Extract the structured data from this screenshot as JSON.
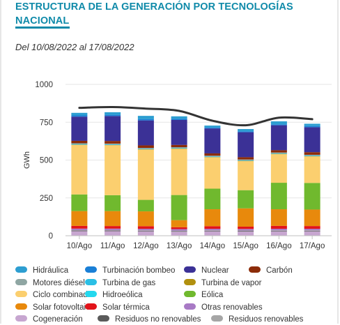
{
  "header": {
    "title_line1": "ESTRUCTURA DE LA GENERACIÓN POR TECNOLOGÍAS",
    "title_line2": "NACIONAL",
    "subtitle": "Del 10/08/2022 al 17/08/2022"
  },
  "colors": {
    "accent": "#0f8aa9",
    "total_line": "#333333",
    "gridline": "#e6e6e6"
  },
  "chart_data": {
    "type": "bar",
    "stacked": true,
    "ylabel": "GWh",
    "ylim": [
      0,
      1000
    ],
    "yticks": [
      0,
      250,
      500,
      750,
      1000
    ],
    "categories": [
      "10/Ago",
      "11/Ago",
      "12/Ago",
      "13/Ago",
      "14/Ago",
      "15/Ago",
      "16/Ago",
      "17/Ago"
    ],
    "series": [
      {
        "name": "Cogeneración",
        "color": "#c7a6d0",
        "values": [
          30,
          30,
          29,
          27,
          29,
          28,
          29,
          29
        ]
      },
      {
        "name": "Residuos no renovables",
        "color": "#5a5a5a",
        "values": [
          4,
          4,
          4,
          4,
          4,
          4,
          4,
          4
        ]
      },
      {
        "name": "Residuos renovables",
        "color": "#a6a6a6",
        "values": [
          3,
          3,
          3,
          3,
          3,
          3,
          3,
          3
        ]
      },
      {
        "name": "Otras renovables",
        "color": "#a87ac5",
        "values": [
          10,
          10,
          10,
          10,
          10,
          10,
          10,
          10
        ]
      },
      {
        "name": "Solar térmica",
        "color": "#e2141a",
        "values": [
          18,
          17,
          17,
          12,
          17,
          15,
          19,
          18
        ]
      },
      {
        "name": "Solar fotovoltaica",
        "color": "#e8890c",
        "values": [
          98,
          99,
          98,
          47,
          112,
          121,
          110,
          109
        ]
      },
      {
        "name": "Eólica",
        "color": "#70b92e",
        "values": [
          110,
          105,
          76,
          166,
          136,
          120,
          175,
          176
        ]
      },
      {
        "name": "Hidroeólica",
        "color": "#23d8ee",
        "values": [
          0,
          0,
          0,
          0,
          0,
          0,
          0,
          0
        ]
      },
      {
        "name": "Ciclo combinado",
        "color": "#fbcf6f",
        "values": [
          327,
          330,
          332,
          305,
          207,
          192,
          189,
          175
        ]
      },
      {
        "name": "Turbina de vapor",
        "color": "#b1900f",
        "values": [
          2,
          2,
          2,
          2,
          2,
          2,
          2,
          2
        ]
      },
      {
        "name": "Turbina de gas",
        "color": "#2bbfe5",
        "values": [
          4,
          4,
          4,
          4,
          4,
          4,
          4,
          4
        ]
      },
      {
        "name": "Motores diésel",
        "color": "#8fa6a3",
        "values": [
          5,
          5,
          5,
          5,
          5,
          5,
          5,
          5
        ]
      },
      {
        "name": "Carbón",
        "color": "#8c2c08",
        "values": [
          16,
          17,
          17,
          15,
          15,
          15,
          15,
          17
        ]
      },
      {
        "name": "Nuclear",
        "color": "#3b3196",
        "values": [
          160,
          165,
          165,
          165,
          165,
          165,
          165,
          165
        ]
      },
      {
        "name": "Turbinación bombeo",
        "color": "#1a7fd6",
        "values": [
          8,
          8,
          8,
          8,
          6,
          6,
          6,
          8
        ]
      },
      {
        "name": "Hidráulica",
        "color": "#2d9ed1",
        "values": [
          17,
          17,
          22,
          16,
          13,
          15,
          20,
          15
        ]
      }
    ],
    "total_line": [
      845,
      850,
      840,
      825,
      760,
      730,
      780,
      770
    ],
    "legend": [
      {
        "label": "Hidráulica",
        "color": "#2d9ed1"
      },
      {
        "label": "Turbinación bombeo",
        "color": "#1a7fd6"
      },
      {
        "label": "Nuclear",
        "color": "#3b3196"
      },
      {
        "label": "Carbón",
        "color": "#8c2c08"
      },
      {
        "label": "Motores diésel",
        "color": "#8fa6a3"
      },
      {
        "label": "Turbina de gas",
        "color": "#2bbfe5"
      },
      {
        "label": "Turbina de vapor",
        "color": "#b1900f"
      },
      {
        "label": "Ciclo combinado",
        "color": "#fbcf6f"
      },
      {
        "label": "Hidroeólica",
        "color": "#23d8ee"
      },
      {
        "label": "Eólica",
        "color": "#70b92e"
      },
      {
        "label": "Solar fotovoltaica",
        "color": "#e8890c"
      },
      {
        "label": "Solar térmica",
        "color": "#e2141a"
      },
      {
        "label": "Otras renovables",
        "color": "#a87ac5"
      },
      {
        "label": "Cogeneración",
        "color": "#c7a6d0"
      },
      {
        "label": "Residuos no renovables",
        "color": "#5a5a5a"
      },
      {
        "label": "Residuos renovables",
        "color": "#a6a6a6"
      }
    ]
  }
}
